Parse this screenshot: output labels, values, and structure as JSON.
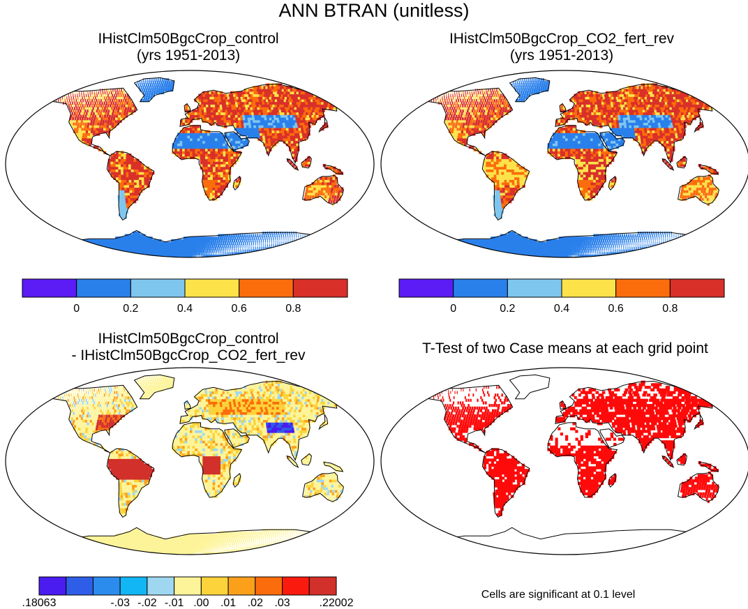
{
  "title": "ANN BTRAN (unitless)",
  "panels": [
    {
      "title1": "IHistClm50BgcCrop_control",
      "title2": "(yrs 1951-2013)",
      "variant": "control"
    },
    {
      "title1": "IHistClm50BgcCrop_CO2_fert_rev",
      "title2": "(yrs 1951-2013)",
      "variant": "rev"
    },
    {
      "title1": "IHistClm50BgcCrop_control",
      "title2": "- IHistClm50BgcCrop_CO2_fert_rev",
      "variant": "diff"
    },
    {
      "title1": "T-Test of two Case means at each grid point",
      "title2": "",
      "variant": "ttest"
    }
  ],
  "colorbars": {
    "mean": {
      "colors": [
        "#5b1cf5",
        "#2a80eb",
        "#7fc6ef",
        "#fde24a",
        "#fb6d0c",
        "#d9302a"
      ],
      "labels": [
        "0",
        "0.2",
        "0.4",
        "0.6",
        "0.8"
      ]
    },
    "diff": {
      "colors": [
        "#4a1cf0",
        "#2e5ee8",
        "#2b8cee",
        "#12b6f5",
        "#9fd7f0",
        "#fdf49a",
        "#fcd33a",
        "#fca01b",
        "#fb6d0c",
        "#fb1a0e",
        "#d2302a"
      ],
      "labels": [
        ".18063",
        "-.03",
        "-.02",
        "-.01",
        ".00",
        ".01",
        ".02",
        ".03",
        ".22002"
      ]
    }
  },
  "note": "Cells are significant at 0.1 level",
  "legend_colors": {
    "land": "#d9302a",
    "significant": "#ff0a0a",
    "ocean": "#ffffff"
  }
}
